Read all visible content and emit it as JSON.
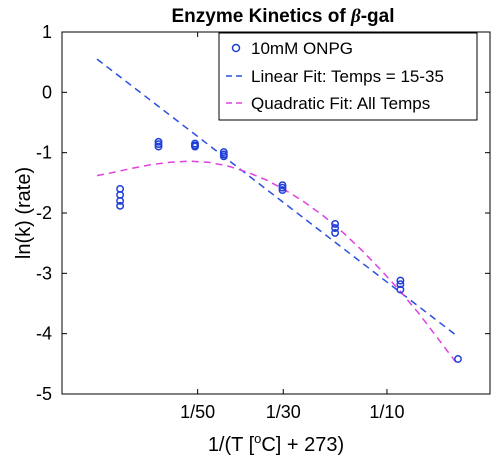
{
  "chart_data": {
    "type": "scatter",
    "title_main": "Enzyme Kinetics of ",
    "title_symbol": "β",
    "title_suffix": "-gal",
    "xlabel_prefix": "1/(T [",
    "xlabel_sup": "o",
    "xlabel_suffix": "C] + 273)",
    "ylabel": "ln(k) (rate)",
    "ylim": [
      -5,
      1
    ],
    "yticks": [
      -5,
      -4,
      -3,
      -2,
      -1,
      0,
      1
    ],
    "ytick_labels": [
      "-5",
      "-4",
      "-3",
      "-2",
      "-1",
      "0",
      "1"
    ],
    "x_position_range": [
      0,
      1
    ],
    "xticks": [
      {
        "pos": 0.322,
        "label": "1/50"
      },
      {
        "pos": 0.545,
        "label": "1/30"
      },
      {
        "pos": 0.815,
        "label": "1/10"
      }
    ],
    "grid": false,
    "legend_position": "top-right",
    "series": [
      {
        "name": "10mM ONPG",
        "style": "markers",
        "color": "#1f3fd8",
        "points": [
          [
            0.12,
            -1.6
          ],
          [
            0.12,
            -1.7
          ],
          [
            0.12,
            -1.8
          ],
          [
            0.12,
            -1.88
          ],
          [
            0.22,
            -0.82
          ],
          [
            0.22,
            -0.86
          ],
          [
            0.22,
            -0.9
          ],
          [
            0.315,
            -0.85
          ],
          [
            0.315,
            -0.88
          ],
          [
            0.315,
            -0.9
          ],
          [
            0.39,
            -0.99
          ],
          [
            0.39,
            -1.03
          ],
          [
            0.39,
            -1.06
          ],
          [
            0.543,
            -1.54
          ],
          [
            0.543,
            -1.58
          ],
          [
            0.543,
            -1.62
          ],
          [
            0.68,
            -2.18
          ],
          [
            0.68,
            -2.25
          ],
          [
            0.68,
            -2.33
          ],
          [
            0.85,
            -3.12
          ],
          [
            0.85,
            -3.18
          ],
          [
            0.85,
            -3.27
          ],
          [
            1.0,
            -4.42
          ]
        ]
      },
      {
        "name": "Linear Fit: Temps = 15-35",
        "style": "dashed",
        "color": "#2b4fe0",
        "points": [
          [
            0.06,
            0.55
          ],
          [
            1.0,
            -4.05
          ]
        ]
      },
      {
        "name": "Quadratic Fit: All Temps",
        "style": "dashed",
        "color": "#e040e0",
        "points": [
          [
            0.06,
            -1.38
          ],
          [
            0.1,
            -1.33
          ],
          [
            0.15,
            -1.26
          ],
          [
            0.2,
            -1.2
          ],
          [
            0.25,
            -1.16
          ],
          [
            0.3,
            -1.14
          ],
          [
            0.35,
            -1.16
          ],
          [
            0.4,
            -1.22
          ],
          [
            0.45,
            -1.32
          ],
          [
            0.5,
            -1.45
          ],
          [
            0.55,
            -1.62
          ],
          [
            0.6,
            -1.82
          ],
          [
            0.65,
            -2.05
          ],
          [
            0.7,
            -2.32
          ],
          [
            0.75,
            -2.62
          ],
          [
            0.8,
            -2.95
          ],
          [
            0.85,
            -3.3
          ],
          [
            0.9,
            -3.68
          ],
          [
            0.95,
            -4.1
          ],
          [
            1.0,
            -4.52
          ]
        ]
      }
    ]
  }
}
